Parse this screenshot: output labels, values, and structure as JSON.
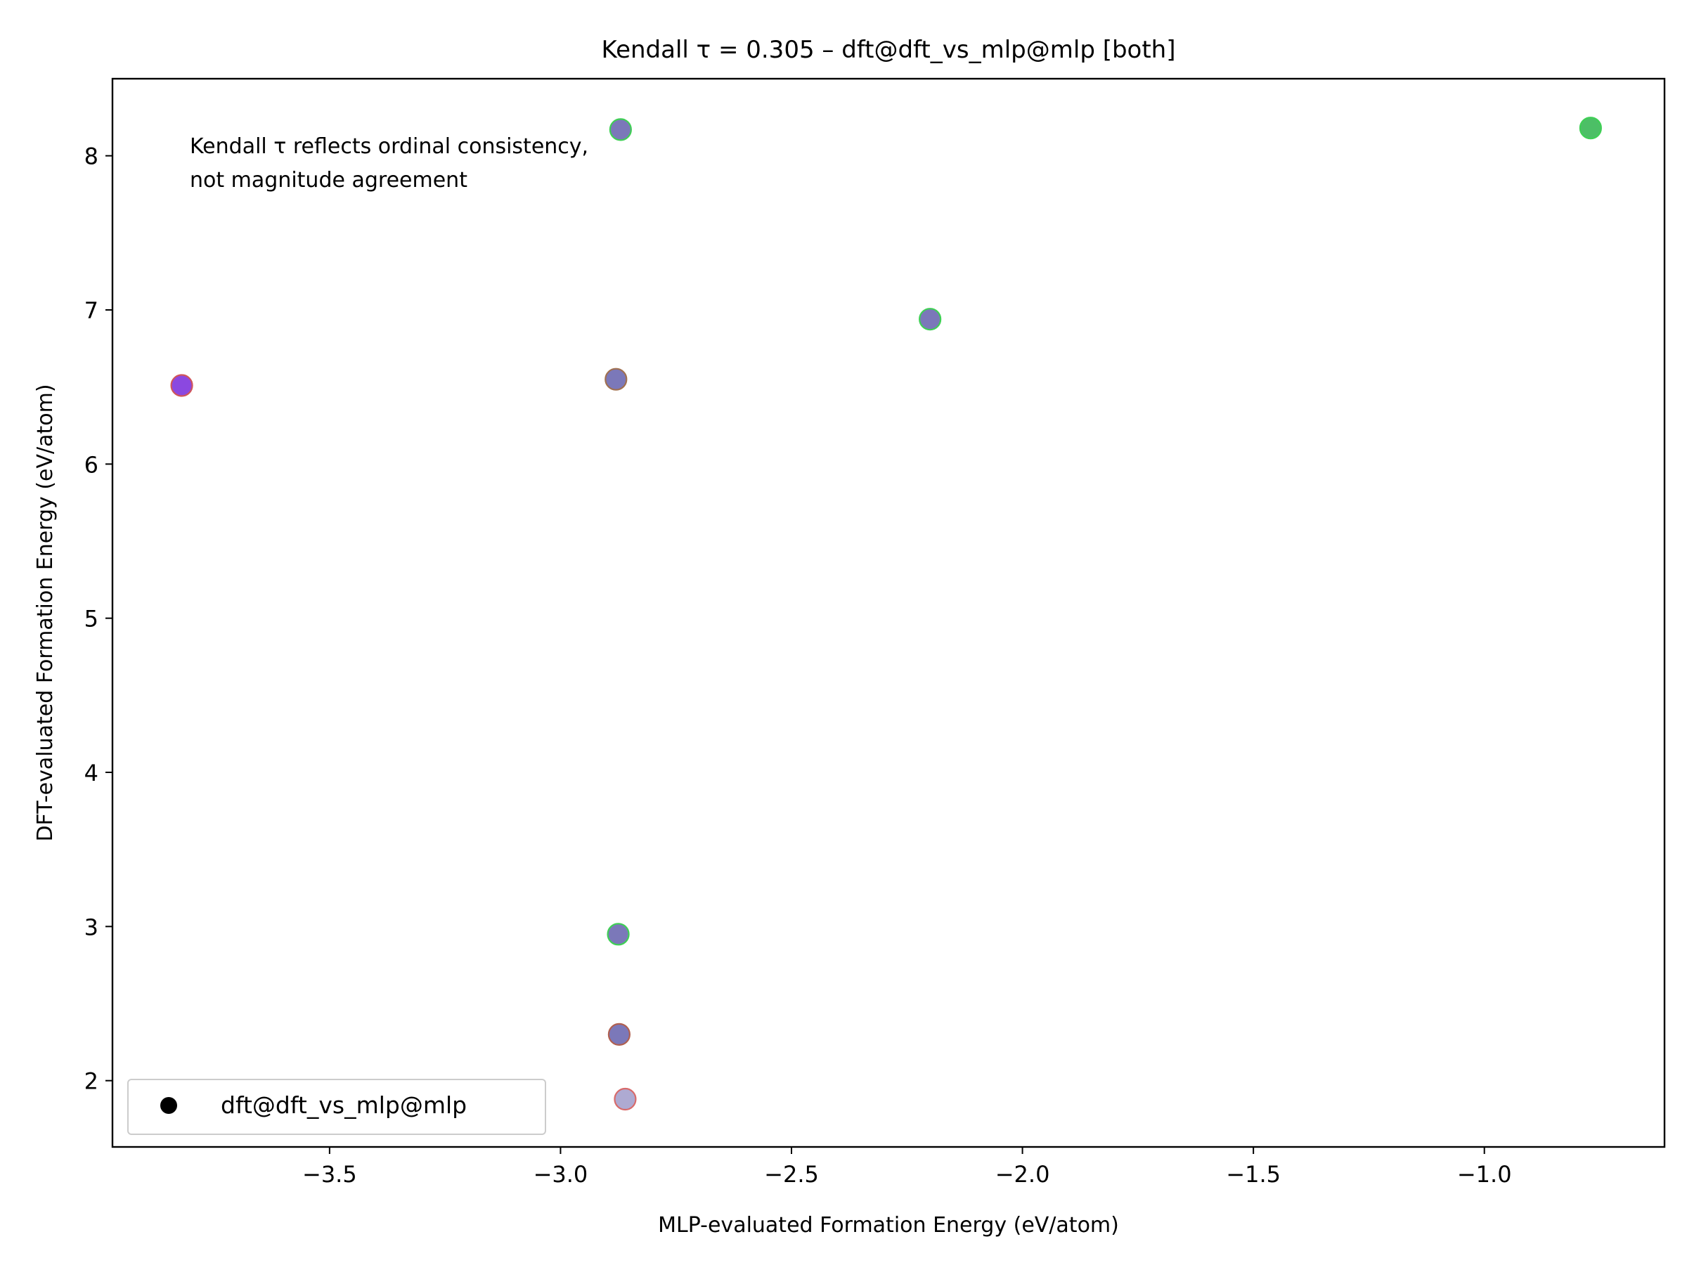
{
  "chart_data": {
    "type": "scatter",
    "title": "Kendall τ = 0.305 – dft@dft_vs_mlp@mlp [both]",
    "xlabel": "MLP-evaluated Formation Energy (eV/atom)",
    "ylabel": "DFT-evaluated Formation Energy (eV/atom)",
    "xlim": [
      -3.97,
      -0.61
    ],
    "ylim": [
      1.57,
      8.5
    ],
    "xticks": [
      -3.5,
      -3.0,
      -2.5,
      -2.0,
      -1.5,
      -1.0
    ],
    "xtick_labels": [
      "−3.5",
      "−3.0",
      "−2.5",
      "−2.0",
      "−1.5",
      "−1.0"
    ],
    "yticks": [
      2,
      3,
      4,
      5,
      6,
      7,
      8
    ],
    "ytick_labels": [
      "2",
      "3",
      "4",
      "5",
      "6",
      "7",
      "8"
    ],
    "grid": false,
    "legend": {
      "placement": "lower-left",
      "entries": [
        "dft@dft_vs_mlp@mlp"
      ]
    },
    "annotation": [
      "Kendall τ reflects ordinal consistency,",
      "not magnitude agreement"
    ],
    "series": [
      {
        "marker_color": "#000000",
        "points": [
          {
            "x": -2.87,
            "y": 8.17,
            "fill": "#7b78b9",
            "edge": "#3fcf55"
          },
          {
            "x": -0.77,
            "y": 8.18,
            "fill": "#4cbf66",
            "edge": "#3fcf55"
          },
          {
            "x": -2.2,
            "y": 6.94,
            "fill": "#7b78b9",
            "edge": "#3fcf55"
          },
          {
            "x": -3.82,
            "y": 6.51,
            "fill": "#8b48e0",
            "edge": "#d0555a"
          },
          {
            "x": -2.88,
            "y": 6.55,
            "fill": "#7b78b9",
            "edge": "#a07050"
          },
          {
            "x": -2.875,
            "y": 2.95,
            "fill": "#7b78b9",
            "edge": "#3fcf55"
          },
          {
            "x": -2.873,
            "y": 2.3,
            "fill": "#7b78b9",
            "edge": "#b06050"
          },
          {
            "x": -2.86,
            "y": 1.88,
            "fill": "#aeaad2",
            "edge": "#d86a6a"
          }
        ]
      }
    ]
  }
}
